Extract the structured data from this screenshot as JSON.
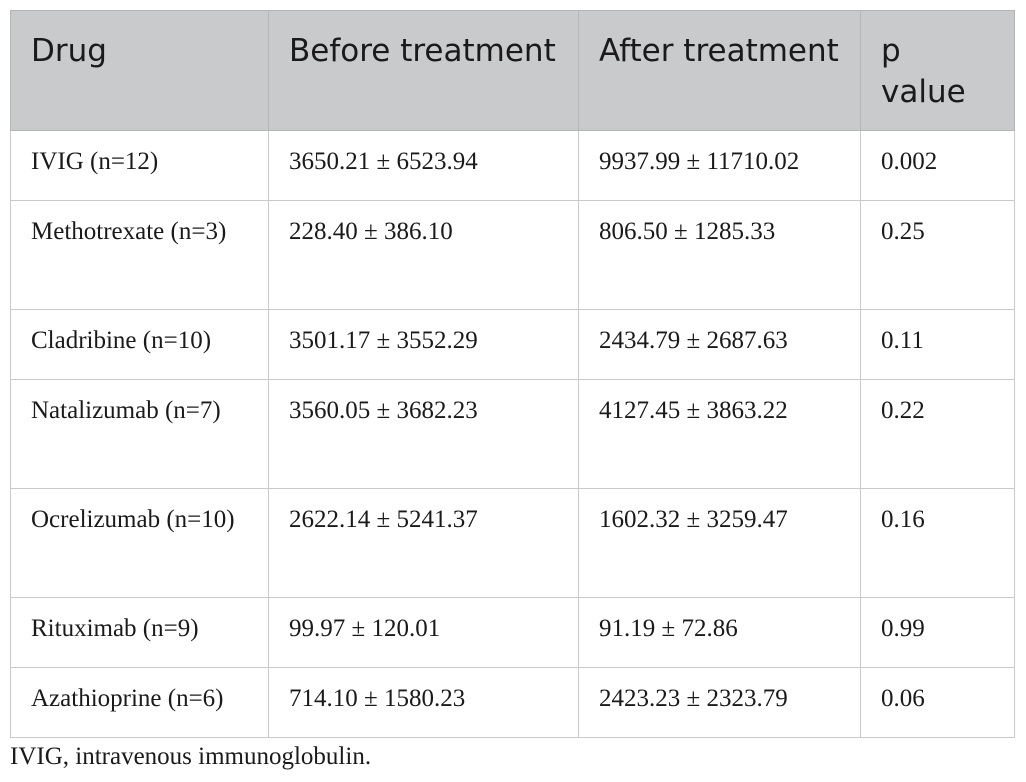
{
  "table": {
    "headers": [
      "Drug",
      "Before treatment",
      "After treatment",
      "p value"
    ],
    "rows": [
      {
        "drug": "IVIG (n=12)",
        "before": "3650.21 ± 6523.94",
        "after": "9937.99 ± 11710.02",
        "p": "0.002"
      },
      {
        "drug": "Methotrexate (n=3)",
        "before": "228.40 ± 386.10",
        "after": "806.50 ± 1285.33",
        "p": "0.25"
      },
      {
        "drug": "Cladribine (n=10)",
        "before": "3501.17 ± 3552.29",
        "after": "2434.79 ± 2687.63",
        "p": "0.11"
      },
      {
        "drug": "Natalizumab (n=7)",
        "before": "3560.05 ± 3682.23",
        "after": "4127.45 ± 3863.22",
        "p": "0.22"
      },
      {
        "drug": "Ocrelizumab (n=10)",
        "before": "2622.14 ± 5241.37",
        "after": "1602.32 ± 3259.47",
        "p": "0.16"
      },
      {
        "drug": "Rituximab (n=9)",
        "before": "99.97 ± 120.01",
        "after": "91.19 ± 72.86",
        "p": "0.99"
      },
      {
        "drug": "Azathioprine (n=6)",
        "before": "714.10 ± 1580.23",
        "after": "2423.23 ± 2323.79",
        "p": "0.06"
      }
    ]
  },
  "footnote": "IVIG, intravenous immunoglobulin."
}
